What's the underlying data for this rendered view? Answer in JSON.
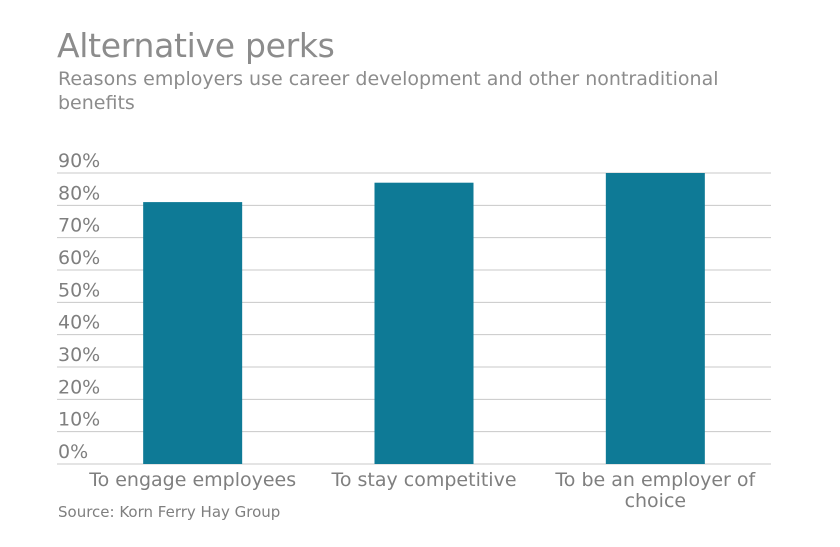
{
  "title": "Alternative perks",
  "subtitle": "Reasons employers use career development and other nontraditional benefits",
  "source": "Source: Korn Ferry Hay Group",
  "colors": {
    "bar": "#0e7a96",
    "grid": "#c8c8c8",
    "text": "#7f7f7f"
  },
  "chart_data": {
    "type": "bar",
    "categories": [
      [
        "To engage employees"
      ],
      [
        "To stay competitive"
      ],
      [
        "To be an employer of",
        "choice"
      ]
    ],
    "values": [
      81,
      87,
      90
    ],
    "ylim": [
      0,
      90
    ],
    "yticks": [
      0,
      10,
      20,
      30,
      40,
      50,
      60,
      70,
      80,
      90
    ],
    "ytick_labels": [
      "0%",
      "10%",
      "20%",
      "30%",
      "40%",
      "50%",
      "60%",
      "70%",
      "80%",
      "90%"
    ],
    "grid": true,
    "legend": "none",
    "xlabel": "",
    "ylabel": ""
  }
}
